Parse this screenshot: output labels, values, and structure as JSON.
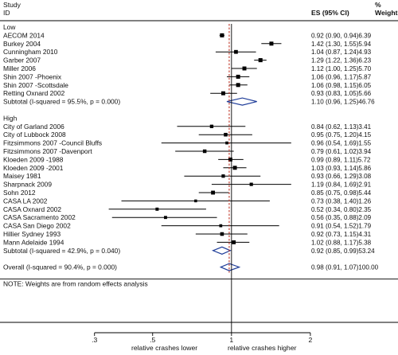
{
  "chart_data": {
    "type": "forest",
    "header": {
      "study_line1": "Study",
      "study_line2": "ID",
      "es_label": "ES (95% CI)",
      "weight_line1": "%",
      "weight_line2": "Weight"
    },
    "x_axis": {
      "scale": "log",
      "ticks": [
        0.3,
        0.5,
        1,
        2
      ],
      "tick_labels": [
        ".3",
        ".5",
        "1",
        "2"
      ],
      "xlim": [
        0.265,
        2.8
      ],
      "label_left": "relative crashes lower",
      "label_right": "relative crashes higher",
      "null_line": 1
    },
    "colors": {
      "marker": "#000000",
      "diamond": "#1f3d99",
      "overall_line": "#c0392b"
    },
    "rows": [
      {
        "kind": "group",
        "label": "Low"
      },
      {
        "kind": "study",
        "label": "AECOM 2014",
        "es": 0.92,
        "lo": 0.9,
        "hi": 0.94,
        "weight": 6.39,
        "text": "0.92 (0.90, 0.94)6.39"
      },
      {
        "kind": "study",
        "label": "Burkey 2004",
        "es": 1.42,
        "lo": 1.3,
        "hi": 1.55,
        "weight": 5.94,
        "text": "1.42 (1.30, 1.55)5.94"
      },
      {
        "kind": "study",
        "label": "Cunningham 2010",
        "es": 1.04,
        "lo": 0.87,
        "hi": 1.24,
        "weight": 4.93,
        "text": "1.04 (0.87, 1.24)4.93"
      },
      {
        "kind": "study",
        "label": "Garber 2007",
        "es": 1.29,
        "lo": 1.22,
        "hi": 1.36,
        "weight": 6.23,
        "text": "1.29 (1.22, 1.36)6.23"
      },
      {
        "kind": "study",
        "label": "Miller 2006",
        "es": 1.12,
        "lo": 1.0,
        "hi": 1.25,
        "weight": 5.7,
        "text": "1.12 (1.00, 1.25)5.70"
      },
      {
        "kind": "study",
        "label": "Shin 2007 -Phoenix",
        "es": 1.06,
        "lo": 0.96,
        "hi": 1.17,
        "weight": 5.87,
        "text": "1.06 (0.96, 1.17)5.87"
      },
      {
        "kind": "study",
        "label": "Shin 2007 -Scottsdale",
        "es": 1.06,
        "lo": 0.98,
        "hi": 1.15,
        "weight": 6.05,
        "text": "1.06 (0.98, 1.15)6.05"
      },
      {
        "kind": "study",
        "label": "Retting Oxnard 2002",
        "es": 0.93,
        "lo": 0.83,
        "hi": 1.05,
        "weight": 5.66,
        "text": "0.93 (0.83, 1.05)5.66"
      },
      {
        "kind": "subtotal",
        "label": "Subtotal  (I-squared = 95.5%, p = 0.000)",
        "es": 1.1,
        "lo": 0.96,
        "hi": 1.25,
        "weight": 46.76,
        "text": "1.10 (0.96, 1.25)46.76"
      },
      {
        "kind": "blank"
      },
      {
        "kind": "group",
        "label": "High"
      },
      {
        "kind": "study",
        "label": "City of Garland 2006",
        "es": 0.84,
        "lo": 0.62,
        "hi": 1.13,
        "weight": 3.41,
        "text": "0.84 (0.62, 1.13)3.41"
      },
      {
        "kind": "study",
        "label": "City of Lubbock 2008",
        "es": 0.95,
        "lo": 0.75,
        "hi": 1.2,
        "weight": 4.15,
        "text": "0.95 (0.75, 1.20)4.15"
      },
      {
        "kind": "study",
        "label": "Fitzsimmons 2007 -Council Bluffs",
        "es": 0.96,
        "lo": 0.54,
        "hi": 1.69,
        "weight": 1.55,
        "text": "0.96 (0.54, 1.69)1.55"
      },
      {
        "kind": "study",
        "label": "Fitzsimmons 2007 -Davenport",
        "es": 0.79,
        "lo": 0.61,
        "hi": 1.02,
        "weight": 3.94,
        "text": "0.79 (0.61, 1.02)3.94"
      },
      {
        "kind": "study",
        "label": "Kloeden 2009 -1988",
        "es": 0.99,
        "lo": 0.89,
        "hi": 1.11,
        "weight": 5.72,
        "text": "0.99 (0.89, 1.11)5.72"
      },
      {
        "kind": "study",
        "label": "Kloeden 2009 -2001",
        "es": 1.03,
        "lo": 0.93,
        "hi": 1.14,
        "weight": 5.86,
        "text": "1.03 (0.93, 1.14)5.86"
      },
      {
        "kind": "study",
        "label": "Maisey 1981",
        "es": 0.93,
        "lo": 0.66,
        "hi": 1.29,
        "weight": 3.08,
        "text": "0.93 (0.66, 1.29)3.08"
      },
      {
        "kind": "study",
        "label": "Sharpnack 2009",
        "es": 1.19,
        "lo": 0.84,
        "hi": 1.69,
        "weight": 2.91,
        "text": "1.19 (0.84, 1.69)2.91"
      },
      {
        "kind": "study",
        "label": "Sohn 2012",
        "es": 0.85,
        "lo": 0.75,
        "hi": 0.98,
        "weight": 5.44,
        "text": "0.85 (0.75, 0.98)5.44"
      },
      {
        "kind": "study",
        "label": "CASA LA 2002",
        "es": 0.73,
        "lo": 0.38,
        "hi": 1.4,
        "weight": 1.26,
        "text": "0.73 (0.38, 1.40)1.26"
      },
      {
        "kind": "study",
        "label": "CASA Oxnard 2002",
        "es": 0.52,
        "lo": 0.34,
        "hi": 0.8,
        "weight": 2.35,
        "text": "0.52 (0.34, 0.80)2.35"
      },
      {
        "kind": "study",
        "label": "CASA Sacramento 2002",
        "es": 0.56,
        "lo": 0.35,
        "hi": 0.88,
        "weight": 2.09,
        "text": "0.56 (0.35, 0.88)2.09"
      },
      {
        "kind": "study",
        "label": "CASA San Diego 2002",
        "es": 0.91,
        "lo": 0.54,
        "hi": 1.52,
        "weight": 1.79,
        "text": "0.91 (0.54, 1.52)1.79"
      },
      {
        "kind": "study",
        "label": "Hillier Sydney 1993",
        "es": 0.92,
        "lo": 0.73,
        "hi": 1.15,
        "weight": 4.31,
        "text": "0.92 (0.73, 1.15)4.31"
      },
      {
        "kind": "study",
        "label": "Mann Adelaide 1994",
        "es": 1.02,
        "lo": 0.88,
        "hi": 1.17,
        "weight": 5.38,
        "text": "1.02 (0.88, 1.17)5.38"
      },
      {
        "kind": "subtotal",
        "label": "Subtotal  (I-squared = 42.9%, p = 0.040)",
        "es": 0.92,
        "lo": 0.85,
        "hi": 0.99,
        "weight": 53.24,
        "text": "0.92 (0.85, 0.99)53.24"
      },
      {
        "kind": "blank"
      },
      {
        "kind": "overall",
        "label": "Overall  (I-squared = 90.4%, p = 0.000)",
        "es": 0.98,
        "lo": 0.91,
        "hi": 1.07,
        "weight": 100.0,
        "text": "0.98 (0.91, 1.07)100.00"
      },
      {
        "kind": "blank"
      },
      {
        "kind": "note",
        "label": "NOTE: Weights are from random effects analysis"
      }
    ]
  }
}
